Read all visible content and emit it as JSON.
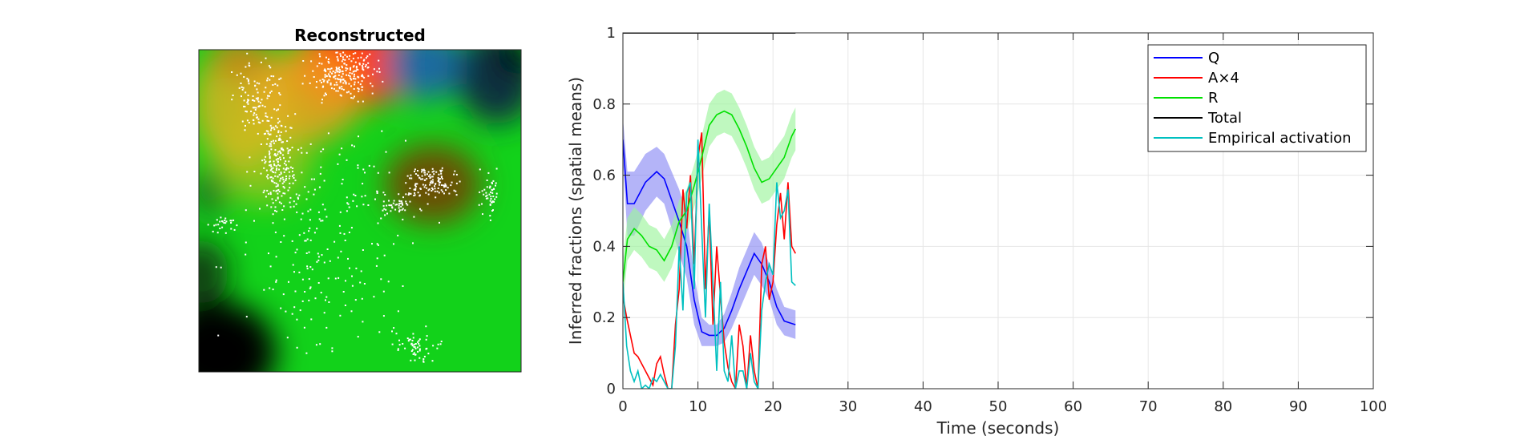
{
  "left_panel": {
    "title": "Reconstructed"
  },
  "chart_data": {
    "type": "line",
    "xlabel": "Time (seconds)",
    "ylabel": "Inferred fractions (spatial means)",
    "xlim": [
      0,
      100
    ],
    "ylim": [
      0,
      1
    ],
    "xticks": [
      0,
      10,
      20,
      30,
      40,
      50,
      60,
      70,
      80,
      90,
      100
    ],
    "yticks": [
      0,
      0.2,
      0.4,
      0.6,
      0.8,
      1
    ],
    "grid": true,
    "legend_position": "top-right",
    "series": [
      {
        "name": "Q",
        "color": "#0000ff",
        "band_color": "#8c8cf5",
        "x": [
          0,
          0.6,
          1.5,
          3,
          4.5,
          5.5,
          6.5,
          7.5,
          8.5,
          9.5,
          10.5,
          11.5,
          12.5,
          13.5,
          14.5,
          15.5,
          16.5,
          17.5,
          18.5,
          19.5,
          20.5,
          21.5,
          23
        ],
        "y": [
          0.7,
          0.52,
          0.52,
          0.58,
          0.61,
          0.59,
          0.53,
          0.47,
          0.4,
          0.25,
          0.16,
          0.15,
          0.15,
          0.17,
          0.22,
          0.28,
          0.33,
          0.38,
          0.35,
          0.3,
          0.23,
          0.19,
          0.18
        ],
        "band": [
          0.06,
          0.09,
          0.09,
          0.08,
          0.07,
          0.07,
          0.08,
          0.09,
          0.09,
          0.07,
          0.04,
          0.03,
          0.03,
          0.04,
          0.05,
          0.06,
          0.06,
          0.06,
          0.06,
          0.05,
          0.05,
          0.04,
          0.04
        ]
      },
      {
        "name": "A×4",
        "color": "#ff0000",
        "x": [
          0,
          0.5,
          1,
          1.5,
          2,
          3,
          4,
          4.5,
          5,
          5.5,
          6,
          6.5,
          7,
          7.5,
          8,
          8.5,
          9,
          9.5,
          10,
          10.5,
          11,
          11.5,
          12,
          12.5,
          13,
          13.5,
          14,
          14.5,
          15,
          15.5,
          16,
          16.5,
          17,
          17.5,
          18,
          18.5,
          19,
          19.5,
          20,
          20.5,
          21,
          21.5,
          22,
          22.5,
          23
        ],
        "y": [
          0.26,
          0.2,
          0.15,
          0.1,
          0.09,
          0.05,
          0.01,
          0.07,
          0.09,
          0.04,
          0.0,
          0.0,
          0.18,
          0.28,
          0.56,
          0.45,
          0.6,
          0.35,
          0.65,
          0.72,
          0.28,
          0.5,
          0.18,
          0.4,
          0.26,
          0.13,
          0.06,
          0.02,
          0.0,
          0.18,
          0.12,
          0.0,
          0.15,
          0.05,
          0.0,
          0.35,
          0.4,
          0.25,
          0.3,
          0.46,
          0.55,
          0.42,
          0.58,
          0.4,
          0.38
        ]
      },
      {
        "name": "R",
        "color": "#00e000",
        "band_color": "#9df59d",
        "x": [
          0,
          0.6,
          1.5,
          2.5,
          3.5,
          4.5,
          5.5,
          6.5,
          7.5,
          8.5,
          9.5,
          10.5,
          11.5,
          12.5,
          13.5,
          14.5,
          15.5,
          16.5,
          17.5,
          18.5,
          19.5,
          20.5,
          21.5,
          22.5,
          23
        ],
        "y": [
          0.3,
          0.42,
          0.45,
          0.43,
          0.4,
          0.39,
          0.36,
          0.4,
          0.47,
          0.5,
          0.57,
          0.65,
          0.74,
          0.77,
          0.78,
          0.77,
          0.73,
          0.68,
          0.62,
          0.58,
          0.59,
          0.62,
          0.65,
          0.71,
          0.73
        ]
      },
      {
        "name": "Total",
        "color": "#000000",
        "x": [
          0,
          23
        ],
        "y": [
          1,
          1
        ]
      },
      {
        "name": "Empirical activation",
        "color": "#00c0c0",
        "x": [
          0,
          0.5,
          1,
          1.5,
          2,
          2.5,
          3,
          3.5,
          4,
          4.5,
          5,
          5.5,
          6,
          6.5,
          7,
          7.5,
          8,
          8.5,
          9,
          9.5,
          10,
          10.5,
          11,
          11.5,
          12,
          12.5,
          13,
          13.5,
          14,
          14.5,
          15,
          15.5,
          16,
          16.5,
          17,
          17.5,
          18,
          18.5,
          19,
          19.5,
          20,
          20.5,
          21,
          21.5,
          22,
          22.5,
          23
        ],
        "y": [
          0.3,
          0.12,
          0.05,
          0.02,
          0.05,
          0.0,
          0.01,
          0.0,
          0.03,
          0.02,
          0.04,
          0.02,
          0.0,
          0.0,
          0.12,
          0.4,
          0.22,
          0.55,
          0.58,
          0.28,
          0.7,
          0.45,
          0.2,
          0.52,
          0.3,
          0.05,
          0.3,
          0.05,
          0.02,
          0.15,
          0.0,
          0.05,
          0.05,
          0.0,
          0.1,
          0.02,
          0.0,
          0.22,
          0.3,
          0.35,
          0.32,
          0.58,
          0.48,
          0.5,
          0.56,
          0.3,
          0.29
        ]
      }
    ]
  }
}
